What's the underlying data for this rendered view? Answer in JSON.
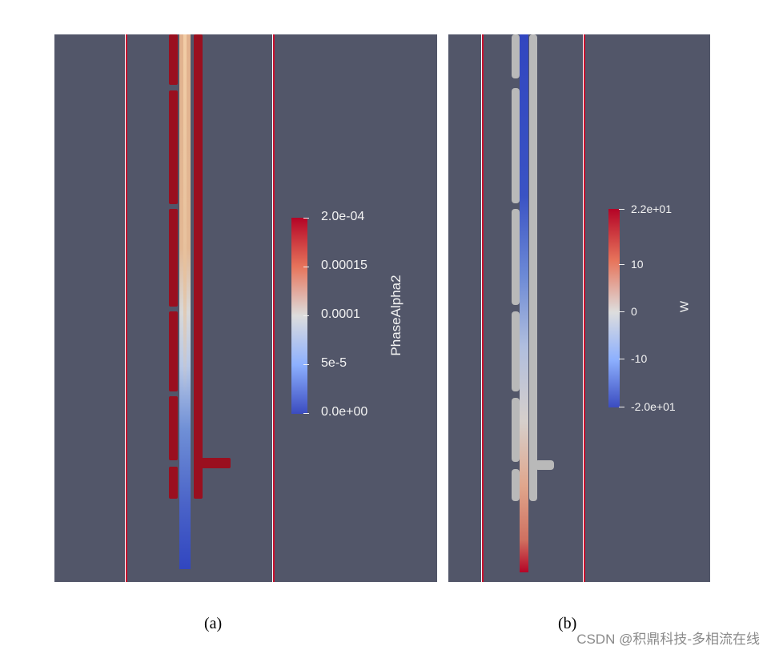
{
  "panel_a": {
    "caption": "(a)",
    "colorbar": {
      "title": "PhaseAlpha2",
      "ticks": [
        "2.0e-04",
        "0.00015",
        "0.0001",
        "5e-5",
        "0.0e+00"
      ]
    }
  },
  "panel_b": {
    "caption": "(b)",
    "colorbar": {
      "title": "W",
      "ticks": [
        "2.2e+01",
        "10",
        "0",
        "-10",
        "-2.0e+01"
      ]
    }
  },
  "watermark": "CSDN @积鼎科技-多相流在线",
  "colors": {
    "background": "#525669",
    "wall": "#c8102e",
    "solid_red": "#9a0f1f",
    "solid_grey": "#b9b9b9",
    "cmap_high": "#b40426",
    "cmap_mid": "#dddddd",
    "cmap_low": "#3b4cc0"
  }
}
